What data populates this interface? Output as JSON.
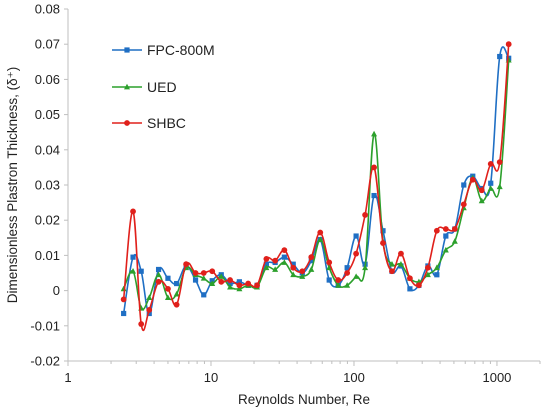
{
  "chart_data": {
    "type": "line",
    "title": "",
    "xlabel": "Reynolds Number, Re",
    "ylabel": "Dimensionless Plastron Thickness, (δ⁺)",
    "xscale": "log",
    "xlim": [
      1,
      2000
    ],
    "ylim": [
      -0.02,
      0.08
    ],
    "xticks": [
      1,
      10,
      100,
      1000
    ],
    "xtick_labels": [
      "1",
      "10",
      "100",
      "1000"
    ],
    "yticks": [
      -0.02,
      -0.01,
      0,
      0.01,
      0.02,
      0.03,
      0.04,
      0.05,
      0.06,
      0.07,
      0.08
    ],
    "ytick_labels": [
      "-0.02",
      "-0.01",
      "0",
      "0.01",
      "0.02",
      "0.03",
      "0.04",
      "0.05",
      "0.06",
      "0.07",
      "0.08"
    ],
    "grid": false,
    "legend_position": "top-left",
    "series": [
      {
        "name": "FPC-800M",
        "color": "#1f6fc4",
        "marker": "square",
        "x": [
          2.45,
          2.85,
          3.25,
          3.7,
          4.3,
          5.0,
          5.75,
          6.7,
          7.8,
          8.9,
          10.2,
          11.8,
          13.6,
          15.8,
          18.2,
          21.0,
          24.4,
          28.1,
          32.6,
          37.6,
          43.5,
          50.3,
          58.1,
          67.1,
          77.6,
          89.6,
          103.5,
          119.6,
          138.2,
          159.6,
          184.4,
          213.1,
          246.2,
          284.5,
          328.8,
          379.8,
          439.0,
          507.3,
          586.2,
          677.4,
          782.8,
          904.6,
          1045.3,
          1208.0
        ],
        "y": [
          -0.0065,
          0.0095,
          0.0055,
          -0.0065,
          0.006,
          0.0035,
          0.002,
          0.007,
          0.003,
          -0.0012,
          0.0028,
          0.0045,
          0.002,
          0.0025,
          0.0015,
          0.0015,
          0.0075,
          0.008,
          0.0095,
          0.0075,
          0.005,
          0.0085,
          0.0145,
          0.003,
          0.0015,
          0.0065,
          0.0155,
          0.0075,
          0.027,
          0.017,
          0.0055,
          0.007,
          0.0005,
          0.0015,
          0.007,
          0.0045,
          0.0155,
          0.0175,
          0.03,
          0.0325,
          0.029,
          0.0305,
          0.0665,
          0.066
        ]
      },
      {
        "name": "UED",
        "color": "#2ca02c",
        "marker": "triangle",
        "x": [
          2.45,
          2.85,
          3.25,
          3.7,
          4.3,
          5.0,
          5.75,
          6.7,
          7.8,
          8.9,
          10.2,
          11.8,
          13.6,
          15.8,
          18.2,
          21.0,
          24.4,
          28.1,
          32.6,
          37.6,
          43.5,
          50.3,
          58.1,
          67.1,
          77.6,
          89.6,
          103.5,
          119.6,
          138.2,
          159.6,
          184.4,
          213.1,
          246.2,
          284.5,
          328.8,
          379.8,
          439.0,
          507.3,
          586.2,
          677.4,
          782.8,
          904.6,
          1045.3,
          1208.0
        ],
        "y": [
          0.0005,
          0.0055,
          -0.005,
          -0.002,
          0.0045,
          -0.002,
          -0.001,
          0.0065,
          0.0045,
          0.0035,
          0.002,
          0.004,
          0.001,
          0.0005,
          0.0015,
          0.001,
          0.0065,
          0.006,
          0.008,
          0.0045,
          0.004,
          0.006,
          0.0145,
          0.0065,
          0.0015,
          0.0015,
          0.004,
          0.0065,
          0.0445,
          0.014,
          0.0075,
          0.0075,
          0.0035,
          0.0025,
          0.0045,
          0.0065,
          0.0115,
          0.014,
          0.0235,
          0.032,
          0.0255,
          0.029,
          0.0295,
          0.0655
        ]
      },
      {
        "name": "SHBC",
        "color": "#e0201b",
        "marker": "circle",
        "x": [
          2.45,
          2.85,
          3.25,
          3.7,
          4.3,
          5.0,
          5.75,
          6.7,
          7.8,
          8.9,
          10.2,
          11.8,
          13.6,
          15.8,
          18.2,
          21.0,
          24.4,
          28.1,
          32.6,
          37.6,
          43.5,
          50.3,
          58.1,
          67.1,
          77.6,
          89.6,
          103.5,
          119.6,
          138.2,
          159.6,
          184.4,
          213.1,
          246.2,
          284.5,
          328.8,
          379.8,
          439.0,
          507.3,
          586.2,
          677.4,
          782.8,
          904.6,
          1045.3,
          1208.0
        ],
        "y": [
          -0.0025,
          0.0225,
          -0.0095,
          -0.0055,
          0.0025,
          0.0005,
          -0.004,
          0.0075,
          0.005,
          0.005,
          0.0055,
          0.0025,
          0.003,
          0.0015,
          0.002,
          0.0015,
          0.009,
          0.0085,
          0.0115,
          0.0065,
          0.0055,
          0.0095,
          0.0165,
          0.008,
          0.003,
          0.005,
          0.0105,
          0.0215,
          0.035,
          0.0135,
          0.0055,
          0.0105,
          0.0035,
          0.0015,
          0.0065,
          0.017,
          0.0175,
          0.0175,
          0.0245,
          0.0315,
          0.0285,
          0.036,
          0.0365,
          0.07
        ]
      }
    ]
  }
}
